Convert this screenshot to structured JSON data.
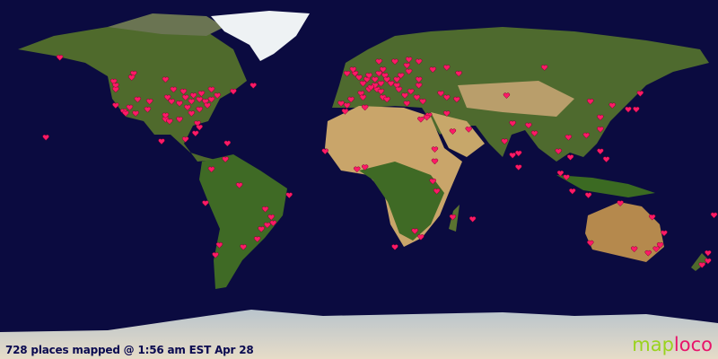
{
  "caption": "728 places mapped @ 1:56 am EST Apr 28",
  "logo": {
    "part1": "map",
    "part2": "loco"
  },
  "colors": {
    "ocean": "#0b0b40",
    "marker": "#ff1a66",
    "land": "#4d6b2a",
    "desert": "#c8a66a",
    "ice": "#e8eef2"
  },
  "marker_icon": "heart-icon",
  "markers": [
    [
      49,
      -123
    ],
    [
      47,
      -122
    ],
    [
      45,
      -122
    ],
    [
      37,
      -122
    ],
    [
      34,
      -118
    ],
    [
      33,
      -117
    ],
    [
      36,
      -115
    ],
    [
      40,
      -111
    ],
    [
      39,
      -105
    ],
    [
      33,
      -112
    ],
    [
      35,
      -106
    ],
    [
      30,
      -97
    ],
    [
      32,
      -97
    ],
    [
      29,
      -95
    ],
    [
      30,
      -90
    ],
    [
      33,
      -84
    ],
    [
      35,
      -80
    ],
    [
      36,
      -86
    ],
    [
      39,
      -94
    ],
    [
      41,
      -96
    ],
    [
      41,
      -87
    ],
    [
      42,
      -83
    ],
    [
      40,
      -80
    ],
    [
      39,
      -77
    ],
    [
      40,
      -74
    ],
    [
      42,
      -71
    ],
    [
      43,
      -79
    ],
    [
      45,
      -74
    ],
    [
      45,
      -93
    ],
    [
      44,
      -88
    ],
    [
      38,
      -90
    ],
    [
      39,
      -84
    ],
    [
      28,
      -81
    ],
    [
      26,
      -80
    ],
    [
      37,
      -76
    ],
    [
      44,
      -63
    ],
    [
      47,
      -53
    ],
    [
      53,
      -113
    ],
    [
      51,
      -114
    ],
    [
      50,
      -97
    ],
    [
      61,
      -150
    ],
    [
      21,
      -157
    ],
    [
      19,
      -99
    ],
    [
      20,
      -87
    ],
    [
      23,
      -82
    ],
    [
      18,
      -66
    ],
    [
      10,
      -67
    ],
    [
      5,
      -74
    ],
    [
      -12,
      -77
    ],
    [
      -23,
      -46
    ],
    [
      -22,
      -43
    ],
    [
      -19,
      -44
    ],
    [
      -25,
      -49
    ],
    [
      -30,
      -51
    ],
    [
      -34,
      -58
    ],
    [
      -33,
      -70
    ],
    [
      -38,
      -72
    ],
    [
      -15,
      -47
    ],
    [
      -8,
      -35
    ],
    [
      -3,
      -60
    ],
    [
      51,
      0
    ],
    [
      53,
      -2
    ],
    [
      55,
      -3
    ],
    [
      53,
      -6
    ],
    [
      48,
      2
    ],
    [
      45,
      5
    ],
    [
      43,
      1
    ],
    [
      40,
      -4
    ],
    [
      41,
      2
    ],
    [
      38,
      -9
    ],
    [
      37,
      -6
    ],
    [
      45,
      9
    ],
    [
      41,
      12
    ],
    [
      44,
      11
    ],
    [
      40,
      14
    ],
    [
      47,
      8
    ],
    [
      46,
      6
    ],
    [
      50,
      4
    ],
    [
      52,
      5
    ],
    [
      52,
      13
    ],
    [
      50,
      8
    ],
    [
      48,
      11
    ],
    [
      53,
      10
    ],
    [
      55,
      12
    ],
    [
      59,
      10
    ],
    [
      59,
      18
    ],
    [
      60,
      25
    ],
    [
      57,
      24
    ],
    [
      54,
      25
    ],
    [
      52,
      21
    ],
    [
      50,
      19
    ],
    [
      50,
      14
    ],
    [
      48,
      16
    ],
    [
      47,
      19
    ],
    [
      45,
      20
    ],
    [
      44,
      26
    ],
    [
      42,
      23
    ],
    [
      38,
      24
    ],
    [
      41,
      29
    ],
    [
      39,
      32
    ],
    [
      47,
      30
    ],
    [
      50,
      30
    ],
    [
      55,
      37
    ],
    [
      59,
      30
    ],
    [
      56,
      44
    ],
    [
      53,
      50
    ],
    [
      43,
      41
    ],
    [
      41,
      44
    ],
    [
      40,
      49
    ],
    [
      32,
      35
    ],
    [
      31,
      34
    ],
    [
      30,
      31
    ],
    [
      33,
      44
    ],
    [
      36,
      3
    ],
    [
      34,
      -7
    ],
    [
      25,
      55
    ],
    [
      24,
      47
    ],
    [
      15,
      38
    ],
    [
      9,
      38
    ],
    [
      -1,
      37
    ],
    [
      -6,
      39
    ],
    [
      6,
      3
    ],
    [
      5,
      -1
    ],
    [
      14,
      -17
    ],
    [
      -26,
      28
    ],
    [
      -34,
      18
    ],
    [
      -29,
      31
    ],
    [
      -20,
      57
    ],
    [
      -19,
      47
    ],
    [
      28,
      77
    ],
    [
      19,
      73
    ],
    [
      13,
      80
    ],
    [
      23,
      88
    ],
    [
      12,
      77
    ],
    [
      6,
      80
    ],
    [
      27,
      85
    ],
    [
      14,
      100
    ],
    [
      21,
      105
    ],
    [
      11,
      106
    ],
    [
      3,
      101
    ],
    [
      1,
      104
    ],
    [
      -6,
      107
    ],
    [
      -8,
      115
    ],
    [
      14,
      121
    ],
    [
      10,
      124
    ],
    [
      22,
      114
    ],
    [
      25,
      121
    ],
    [
      31,
      121
    ],
    [
      39,
      116
    ],
    [
      37,
      127
    ],
    [
      35,
      135
    ],
    [
      35,
      139
    ],
    [
      43,
      141
    ],
    [
      56,
      93
    ],
    [
      42,
      74
    ],
    [
      -33,
      151
    ],
    [
      -37,
      145
    ],
    [
      -35,
      138
    ],
    [
      -32,
      116
    ],
    [
      -27,
      153
    ],
    [
      -19,
      147
    ],
    [
      -12,
      131
    ],
    [
      -35,
      149
    ],
    [
      -41,
      175
    ],
    [
      -37,
      175
    ],
    [
      -43,
      172
    ],
    [
      -18,
      178
    ]
  ]
}
